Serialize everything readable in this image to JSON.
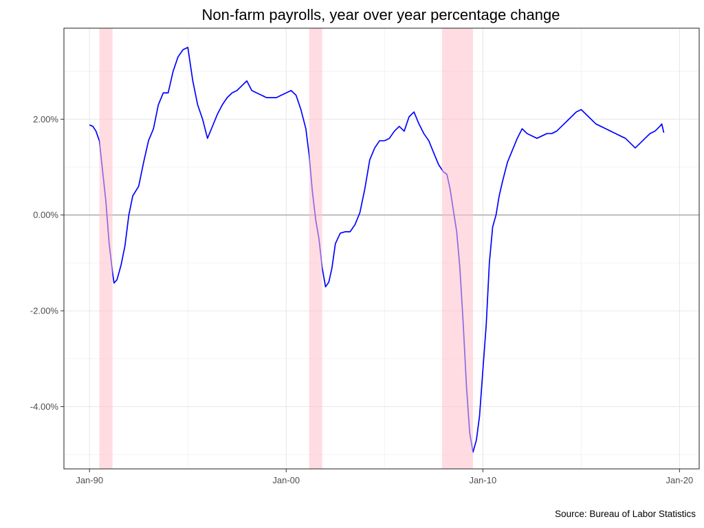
{
  "chart_data": {
    "type": "line",
    "title": "Non-farm payrolls, year over year percentage change",
    "caption": "Source: Bureau of Labor Statistics",
    "xlabel": "",
    "ylabel": "",
    "xlim": [
      1988.7,
      2021.0
    ],
    "ylim": [
      -5.3,
      3.9
    ],
    "grid": true,
    "x_ticks": [
      {
        "value": 1990,
        "label": "Jan-90"
      },
      {
        "value": 2000,
        "label": "Jan-00"
      },
      {
        "value": 2010,
        "label": "Jan-10"
      },
      {
        "value": 2020,
        "label": "Jan-20"
      }
    ],
    "y_ticks": [
      {
        "value": 2,
        "label": "2.00%"
      },
      {
        "value": 0,
        "label": "0.00%"
      },
      {
        "value": -2,
        "label": "-2.00%"
      },
      {
        "value": -4,
        "label": "-4.00%"
      }
    ],
    "recessions": [
      [
        1990.5,
        1991.17
      ],
      [
        2001.17,
        2001.83
      ],
      [
        2007.92,
        2009.5
      ]
    ],
    "series": [
      {
        "color": "#0000ff",
        "x": [
          1990.0,
          1990.17,
          1990.33,
          1990.5,
          1990.67,
          1990.83,
          1991.0,
          1991.17,
          1991.25,
          1991.4,
          1991.6,
          1991.8,
          1992.0,
          1992.2,
          1992.5,
          1992.75,
          1993.0,
          1993.25,
          1993.5,
          1993.75,
          1994.0,
          1994.25,
          1994.5,
          1994.75,
          1995.0,
          1995.25,
          1995.5,
          1995.75,
          1996.0,
          1996.25,
          1996.5,
          1996.75,
          1997.0,
          1997.25,
          1997.5,
          1997.75,
          1998.0,
          1998.25,
          1998.5,
          1998.75,
          1999.0,
          1999.25,
          1999.5,
          1999.75,
          2000.0,
          2000.25,
          2000.5,
          2000.75,
          2001.0,
          2001.17,
          2001.33,
          2001.5,
          2001.67,
          2001.83,
          2002.0,
          2002.17,
          2002.33,
          2002.5,
          2002.75,
          2003.0,
          2003.25,
          2003.5,
          2003.75,
          2004.0,
          2004.25,
          2004.5,
          2004.75,
          2005.0,
          2005.25,
          2005.5,
          2005.75,
          2006.0,
          2006.25,
          2006.5,
          2006.75,
          2007.0,
          2007.25,
          2007.5,
          2007.75,
          2008.0,
          2008.17,
          2008.33,
          2008.5,
          2008.67,
          2008.83,
          2009.0,
          2009.17,
          2009.33,
          2009.5,
          2009.67,
          2009.83,
          2010.0,
          2010.17,
          2010.33,
          2010.5,
          2010.67,
          2010.83,
          2011.0,
          2011.25,
          2011.5,
          2011.75,
          2012.0,
          2012.25,
          2012.5,
          2012.75,
          2013.0,
          2013.25,
          2013.5,
          2013.75,
          2014.0,
          2014.25,
          2014.5,
          2014.75,
          2015.0,
          2015.25,
          2015.5,
          2015.75,
          2016.0,
          2016.25,
          2016.5,
          2016.75,
          2017.0,
          2017.25,
          2017.5,
          2017.75,
          2018.0,
          2018.25,
          2018.5,
          2018.75,
          2019.0,
          2019.1,
          2019.2
        ],
        "values": [
          1.88,
          1.85,
          1.75,
          1.55,
          0.9,
          0.3,
          -0.6,
          -1.2,
          -1.42,
          -1.35,
          -1.05,
          -0.65,
          0.0,
          0.4,
          0.6,
          1.1,
          1.55,
          1.8,
          2.3,
          2.55,
          2.55,
          3.0,
          3.3,
          3.45,
          3.5,
          2.8,
          2.3,
          2.0,
          1.6,
          1.85,
          2.1,
          2.3,
          2.45,
          2.55,
          2.6,
          2.7,
          2.8,
          2.6,
          2.55,
          2.5,
          2.45,
          2.45,
          2.45,
          2.5,
          2.55,
          2.6,
          2.5,
          2.2,
          1.8,
          1.25,
          0.5,
          -0.1,
          -0.5,
          -1.1,
          -1.5,
          -1.4,
          -1.1,
          -0.6,
          -0.38,
          -0.35,
          -0.35,
          -0.2,
          0.05,
          0.55,
          1.15,
          1.4,
          1.55,
          1.55,
          1.6,
          1.75,
          1.85,
          1.75,
          2.05,
          2.15,
          1.9,
          1.7,
          1.55,
          1.3,
          1.05,
          0.9,
          0.85,
          0.55,
          0.1,
          -0.35,
          -1.1,
          -2.25,
          -3.6,
          -4.55,
          -4.95,
          -4.7,
          -4.2,
          -3.25,
          -2.3,
          -1.0,
          -0.25,
          0.0,
          0.4,
          0.7,
          1.1,
          1.35,
          1.6,
          1.8,
          1.7,
          1.65,
          1.6,
          1.65,
          1.7,
          1.7,
          1.75,
          1.85,
          1.95,
          2.05,
          2.15,
          2.2,
          2.1,
          2.0,
          1.9,
          1.85,
          1.8,
          1.75,
          1.7,
          1.65,
          1.6,
          1.5,
          1.4,
          1.5,
          1.6,
          1.7,
          1.75,
          1.85,
          1.9,
          1.72
        ]
      }
    ]
  }
}
